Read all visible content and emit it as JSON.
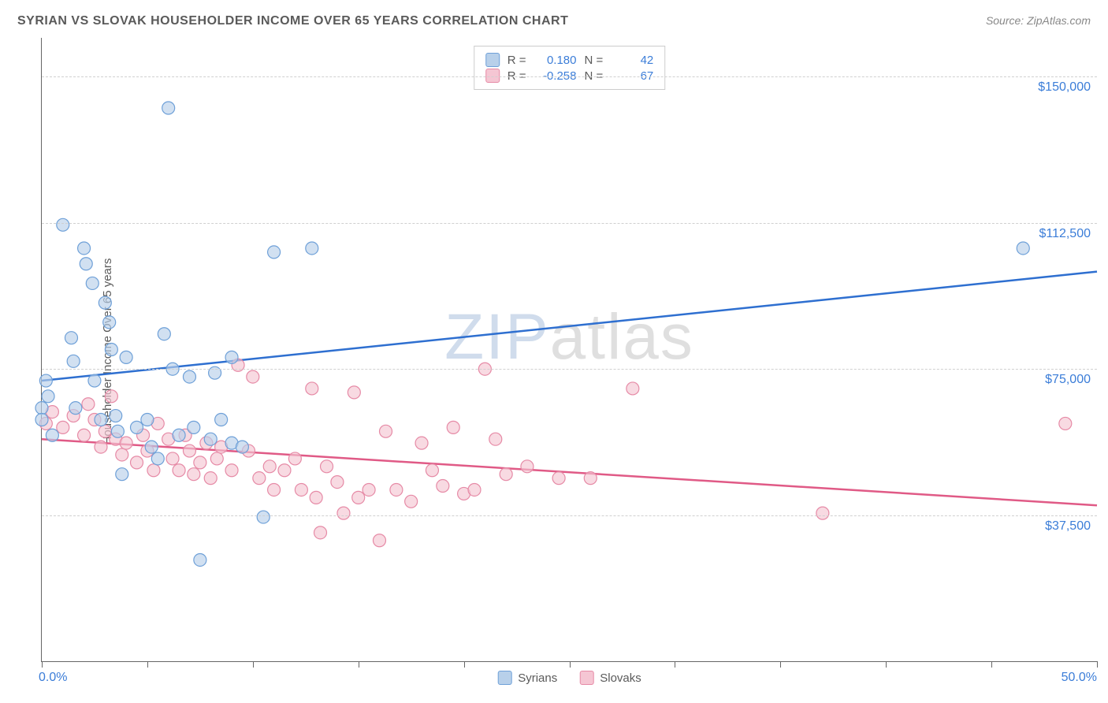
{
  "title": "SYRIAN VS SLOVAK HOUSEHOLDER INCOME OVER 65 YEARS CORRELATION CHART",
  "source": "Source: ZipAtlas.com",
  "ylabel": "Householder Income Over 65 years",
  "watermark_zip": "ZIP",
  "watermark_atlas": "atlas",
  "chart": {
    "type": "scatter-with-regression",
    "xlim": [
      0,
      50
    ],
    "ylim": [
      0,
      160000
    ],
    "x_unit": "%",
    "y_unit": "$",
    "background_color": "#ffffff",
    "grid_color": "#d0d0d0",
    "axis_color": "#666666",
    "tick_label_color": "#3b7dd8",
    "gridlines_y": [
      37500,
      75000,
      112500,
      150000
    ],
    "ytick_labels": [
      "$37,500",
      "$75,000",
      "$112,500",
      "$150,000"
    ],
    "xtick_positions": [
      0,
      5,
      10,
      15,
      20,
      25,
      30,
      35,
      40,
      45,
      50
    ],
    "xlim_labels": {
      "min": "0.0%",
      "max": "50.0%"
    },
    "marker_radius": 8,
    "marker_stroke_width": 1.2,
    "line_width": 2.5,
    "series": [
      {
        "name": "Syrians",
        "fill_color": "#b8d0ea",
        "stroke_color": "#6ea0d8",
        "line_color": "#2e6fd0",
        "R_label": "R =",
        "R": "0.180",
        "N_label": "N =",
        "N": "42",
        "regression": {
          "x1": 0,
          "y1": 72000,
          "x2": 50,
          "y2": 100000
        },
        "points": [
          [
            0.0,
            65000
          ],
          [
            0.0,
            62000
          ],
          [
            0.2,
            72000
          ],
          [
            0.3,
            68000
          ],
          [
            1.0,
            112000
          ],
          [
            1.4,
            83000
          ],
          [
            1.5,
            77000
          ],
          [
            1.6,
            65000
          ],
          [
            2.0,
            106000
          ],
          [
            2.1,
            102000
          ],
          [
            2.4,
            97000
          ],
          [
            2.5,
            72000
          ],
          [
            2.8,
            62000
          ],
          [
            3.0,
            92000
          ],
          [
            3.2,
            87000
          ],
          [
            3.3,
            80000
          ],
          [
            3.5,
            63000
          ],
          [
            3.6,
            59000
          ],
          [
            3.8,
            48000
          ],
          [
            4.0,
            78000
          ],
          [
            4.5,
            60000
          ],
          [
            5.0,
            62000
          ],
          [
            5.2,
            55000
          ],
          [
            5.5,
            52000
          ],
          [
            5.8,
            84000
          ],
          [
            6.0,
            142000
          ],
          [
            6.2,
            75000
          ],
          [
            6.5,
            58000
          ],
          [
            7.0,
            73000
          ],
          [
            7.2,
            60000
          ],
          [
            7.5,
            26000
          ],
          [
            8.0,
            57000
          ],
          [
            8.2,
            74000
          ],
          [
            8.5,
            62000
          ],
          [
            9.0,
            56000
          ],
          [
            9.0,
            78000
          ],
          [
            9.5,
            55000
          ],
          [
            10.5,
            37000
          ],
          [
            11.0,
            105000
          ],
          [
            12.8,
            106000
          ],
          [
            46.5,
            106000
          ],
          [
            0.5,
            58000
          ]
        ]
      },
      {
        "name": "Slovaks",
        "fill_color": "#f5c6d3",
        "stroke_color": "#e68aa6",
        "line_color": "#e05a86",
        "R_label": "R =",
        "R": "-0.258",
        "N_label": "N =",
        "N": "67",
        "regression": {
          "x1": 0,
          "y1": 57000,
          "x2": 50,
          "y2": 40000
        },
        "points": [
          [
            0.2,
            61000
          ],
          [
            0.5,
            64000
          ],
          [
            1.0,
            60000
          ],
          [
            1.5,
            63000
          ],
          [
            2.0,
            58000
          ],
          [
            2.2,
            66000
          ],
          [
            2.5,
            62000
          ],
          [
            2.8,
            55000
          ],
          [
            3.0,
            59000
          ],
          [
            3.3,
            68000
          ],
          [
            3.5,
            57000
          ],
          [
            3.8,
            53000
          ],
          [
            4.0,
            56000
          ],
          [
            4.5,
            51000
          ],
          [
            4.8,
            58000
          ],
          [
            5.0,
            54000
          ],
          [
            5.3,
            49000
          ],
          [
            5.5,
            61000
          ],
          [
            6.0,
            57000
          ],
          [
            6.2,
            52000
          ],
          [
            6.5,
            49000
          ],
          [
            6.8,
            58000
          ],
          [
            7.0,
            54000
          ],
          [
            7.2,
            48000
          ],
          [
            7.5,
            51000
          ],
          [
            7.8,
            56000
          ],
          [
            8.0,
            47000
          ],
          [
            8.3,
            52000
          ],
          [
            8.5,
            55000
          ],
          [
            9.0,
            49000
          ],
          [
            9.3,
            76000
          ],
          [
            9.8,
            54000
          ],
          [
            10.0,
            73000
          ],
          [
            10.3,
            47000
          ],
          [
            10.8,
            50000
          ],
          [
            11.0,
            44000
          ],
          [
            11.5,
            49000
          ],
          [
            12.0,
            52000
          ],
          [
            12.3,
            44000
          ],
          [
            12.8,
            70000
          ],
          [
            13.0,
            42000
          ],
          [
            13.5,
            50000
          ],
          [
            14.0,
            46000
          ],
          [
            14.3,
            38000
          ],
          [
            14.8,
            69000
          ],
          [
            15.0,
            42000
          ],
          [
            15.5,
            44000
          ],
          [
            16.0,
            31000
          ],
          [
            16.3,
            59000
          ],
          [
            16.8,
            44000
          ],
          [
            17.5,
            41000
          ],
          [
            18.0,
            56000
          ],
          [
            18.5,
            49000
          ],
          [
            19.0,
            45000
          ],
          [
            19.5,
            60000
          ],
          [
            20.0,
            43000
          ],
          [
            20.5,
            44000
          ],
          [
            21.0,
            75000
          ],
          [
            21.5,
            57000
          ],
          [
            22.0,
            48000
          ],
          [
            23.0,
            50000
          ],
          [
            24.5,
            47000
          ],
          [
            26.0,
            47000
          ],
          [
            28.0,
            70000
          ],
          [
            37.0,
            38000
          ],
          [
            48.5,
            61000
          ],
          [
            13.2,
            33000
          ]
        ]
      }
    ],
    "bottom_legend": [
      {
        "label": "Syrians",
        "swatch_fill": "#b8d0ea",
        "swatch_border": "#6ea0d8"
      },
      {
        "label": "Slovaks",
        "swatch_fill": "#f5c6d3",
        "swatch_border": "#e68aa6"
      }
    ]
  }
}
